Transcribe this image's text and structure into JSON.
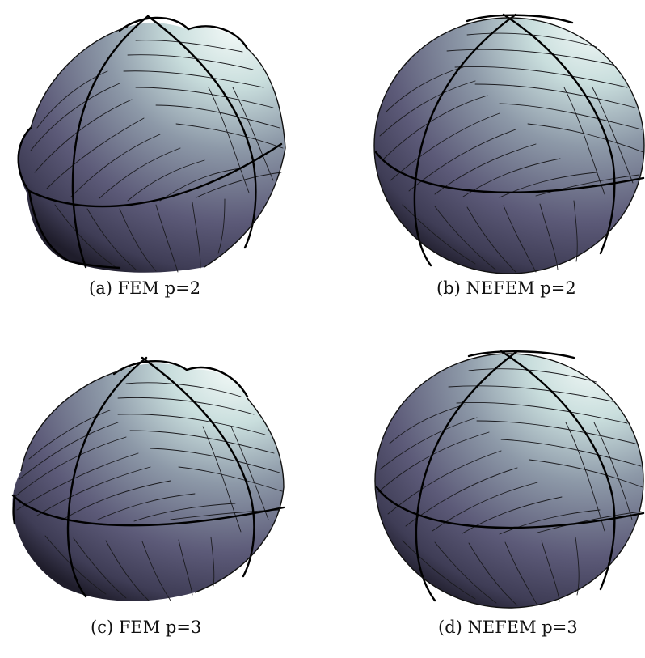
{
  "figure": {
    "subfigures": [
      {
        "id": "a",
        "caption": "(a) FEM p=2"
      },
      {
        "id": "b",
        "caption": "(b) NEFEM p=2"
      },
      {
        "id": "c",
        "caption": "(c) FEM p=3"
      },
      {
        "id": "d",
        "caption": "(d) NEFEM p=3"
      }
    ],
    "colors": {
      "surface_light": "#eaf3f0",
      "surface_mid": "#8d99a8",
      "surface_dark": "#4e4c66",
      "surface_shadow": "#1f1d2b",
      "mesh_lines": "#1b1b1f",
      "element_edges": "#000000"
    }
  }
}
